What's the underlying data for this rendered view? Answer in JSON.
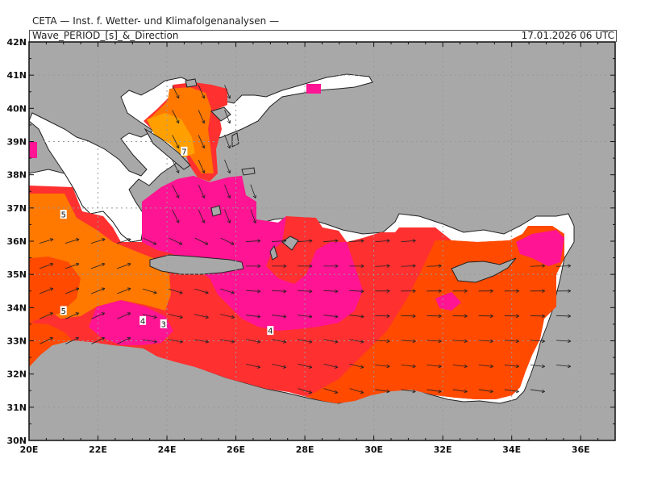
{
  "header": {
    "organization": "CETA — Inst. f. Wetter- und Klimafolgenanalysen —",
    "parameter": "Wave_PERIOD_[s]_&_Direction",
    "valid_time": "17.01.2026 06 UTC"
  },
  "axes": {
    "lon_labels": [
      "20E",
      "22E",
      "24E",
      "26E",
      "28E",
      "30E",
      "32E",
      "34E",
      "36E"
    ],
    "lat_labels": [
      "42N",
      "41N",
      "40N",
      "39N",
      "38N",
      "37N",
      "36N",
      "35N",
      "34N",
      "33N",
      "32N",
      "31N",
      "30N"
    ]
  },
  "contour_labels": [
    {
      "text": "5",
      "lon": 21.0,
      "lat": 36.8
    },
    {
      "text": "5",
      "lon": 21.0,
      "lat": 33.9
    },
    {
      "text": "4",
      "lon": 23.3,
      "lat": 33.6
    },
    {
      "text": "3",
      "lon": 23.9,
      "lat": 33.5
    },
    {
      "text": "4",
      "lon": 27.0,
      "lat": 33.3
    },
    {
      "text": "7",
      "lon": 24.5,
      "lat": 38.7
    }
  ],
  "colors": {
    "land": "#a8a8a8",
    "sea_unshaded": "#ffffff",
    "period_3_4": "#ff1493",
    "period_4_5": "#ff3030",
    "period_5_6": "#ff4a00",
    "period_6_7": "#ff7800",
    "period_7_plus": "#ffa000"
  }
}
